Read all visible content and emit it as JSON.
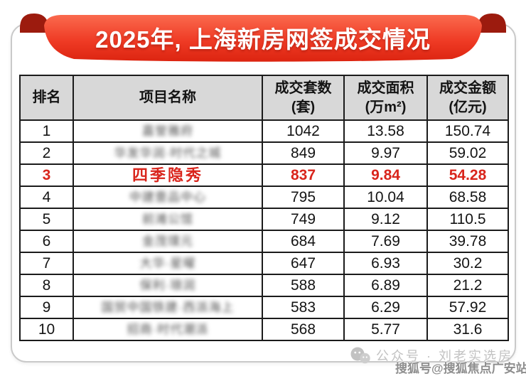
{
  "banner": {
    "title": "2025年, 上海新房网签成交情况",
    "colors": {
      "ribbon_top": "#fa6a4e",
      "ribbon_mid": "#ef3b25",
      "ribbon_bottom": "#dc2410",
      "fold": "#9c1b0e",
      "text": "#ffffff"
    }
  },
  "table": {
    "highlight_color": "#d9251c",
    "header_bg": "#d8d8d8",
    "columns": [
      {
        "key": "rank",
        "label": "排名",
        "sub": ""
      },
      {
        "key": "name",
        "label": "项目名称",
        "sub": ""
      },
      {
        "key": "units",
        "label": "成交套数",
        "sub": "(套)"
      },
      {
        "key": "area",
        "label": "成交面积",
        "sub": "(万m²)"
      },
      {
        "key": "amount",
        "label": "成交金额",
        "sub": "(亿元)"
      }
    ],
    "rows": [
      {
        "rank": "1",
        "name": "嘉誉雅府",
        "name_blurred": true,
        "units": "1042",
        "area": "13.58",
        "amount": "150.74",
        "highlight": false
      },
      {
        "rank": "2",
        "name": "华发华润·时代之城",
        "name_blurred": true,
        "units": "849",
        "area": "9.97",
        "amount": "59.02",
        "highlight": false
      },
      {
        "rank": "3",
        "name": "四季隐秀",
        "name_blurred": false,
        "units": "837",
        "area": "9.84",
        "amount": "54.28",
        "highlight": true
      },
      {
        "rank": "4",
        "name": "中建壹品中心",
        "name_blurred": true,
        "units": "795",
        "area": "10.04",
        "amount": "68.58",
        "highlight": false
      },
      {
        "rank": "5",
        "name": "前滩公馆",
        "name_blurred": true,
        "units": "749",
        "area": "9.12",
        "amount": "110.5",
        "highlight": false
      },
      {
        "rank": "6",
        "name": "金茂璞元",
        "name_blurred": true,
        "units": "684",
        "area": "7.69",
        "amount": "39.78",
        "highlight": false
      },
      {
        "rank": "7",
        "name": "大华·星曜",
        "name_blurred": true,
        "units": "647",
        "area": "6.93",
        "amount": "30.2",
        "highlight": false
      },
      {
        "rank": "8",
        "name": "保利·琅润",
        "name_blurred": true,
        "units": "588",
        "area": "6.89",
        "amount": "21.2",
        "highlight": false
      },
      {
        "rank": "9",
        "name": "国贸中国铁建·西派海上",
        "name_blurred": true,
        "units": "583",
        "area": "6.29",
        "amount": "57.92",
        "highlight": false
      },
      {
        "rank": "10",
        "name": "招商·时代潮派",
        "name_blurred": true,
        "units": "568",
        "area": "5.77",
        "amount": "31.6",
        "highlight": false
      }
    ]
  },
  "watermarks": {
    "wechat_text": "公众号 · 刘老实选房",
    "sohu_text": "搜狐号@搜狐焦点广安站"
  },
  "chart_data": {
    "type": "table",
    "title": "2025年, 上海新房网签成交情况",
    "columns": [
      "排名",
      "项目名称",
      "成交套数(套)",
      "成交面积(万m²)",
      "成交金额(亿元)"
    ],
    "rows": [
      [
        1,
        "(blurred)",
        1042,
        13.58,
        150.74
      ],
      [
        2,
        "(blurred)",
        849,
        9.97,
        59.02
      ],
      [
        3,
        "四季隐秀",
        837,
        9.84,
        54.28
      ],
      [
        4,
        "(blurred)",
        795,
        10.04,
        68.58
      ],
      [
        5,
        "(blurred)",
        749,
        9.12,
        110.5
      ],
      [
        6,
        "(blurred)",
        684,
        7.69,
        39.78
      ],
      [
        7,
        "(blurred)",
        647,
        6.93,
        30.2
      ],
      [
        8,
        "(blurred)",
        588,
        6.89,
        21.2
      ],
      [
        9,
        "(blurred)",
        583,
        6.29,
        57.92
      ],
      [
        10,
        "(blurred)",
        568,
        5.77,
        31.6
      ]
    ],
    "highlighted_rank": 3
  }
}
